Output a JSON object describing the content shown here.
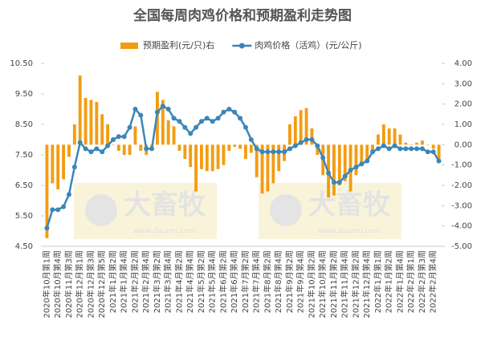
{
  "chart_data": {
    "type": "combo",
    "title": "全国每周肉鸡价格和预期盈利走势图",
    "watermark": "大畜牧",
    "watermark_url": "www.dxumu.com",
    "categories": [
      "2020年10月第1周",
      null,
      "2020年10月第4周",
      null,
      "2020年11月第3周",
      null,
      "2020年12月第1周",
      null,
      "2020年12月第3周",
      null,
      "2020年12月第5周",
      null,
      "2021年1月第2周",
      null,
      "2021年1月第4周",
      null,
      "2021年2月第2周",
      null,
      "2021年2月第4周",
      null,
      "2021年3月第2周",
      null,
      "2021年3月第4周",
      null,
      "2021年4月第2周",
      null,
      "2021年4月第4周",
      null,
      "2021年5月第2周",
      null,
      "2021年5月第4周",
      null,
      "2021年6月第2周",
      null,
      "2021年6月第4周",
      null,
      "2021年7月第2周",
      null,
      "2021年7月第4周",
      null,
      "2021年8月第2周",
      null,
      "2021年8月第4周",
      null,
      "2021年9月第2周",
      null,
      "2021年9月第4周",
      null,
      "2021年10月第2周",
      null,
      "2021年10月第4周",
      null,
      "2021年11月第2周",
      null,
      "2021年11月第4周",
      null,
      "2021年12月第2周",
      null,
      "2021年12月第4周",
      null,
      "2022年1月第1周",
      null,
      "2022年1月第2周",
      null,
      "2022年1月第4周",
      null,
      "2022年2月第1周",
      null,
      "2022年2月第3周",
      null,
      "2022年2月第4周",
      null
    ],
    "series": [
      {
        "name": "预期盈利(元/只)右",
        "type": "bar",
        "axis": "y2",
        "color": "#f39c12",
        "values": [
          -4.6,
          -1.9,
          -2.2,
          -1.7,
          -0.6,
          1.0,
          3.4,
          2.3,
          2.2,
          2.1,
          1.5,
          1.0,
          0.0,
          -0.3,
          -0.5,
          -0.5,
          0.9,
          -0.3,
          -0.5,
          -0.2,
          2.6,
          2.2,
          1.2,
          0.9,
          -0.3,
          -0.7,
          -1.1,
          -2.3,
          -1.2,
          -1.3,
          -1.3,
          -1.2,
          -1.0,
          -0.3,
          -0.1,
          -0.2,
          -0.7,
          -0.4,
          -1.6,
          -2.4,
          -2.3,
          -1.9,
          -1.3,
          -0.8,
          1.0,
          1.4,
          1.7,
          1.8,
          0.8,
          -0.5,
          -1.5,
          -2.6,
          -2.5,
          -2.0,
          -1.8,
          -2.3,
          -1.5,
          -1.0,
          -0.7,
          -0.3,
          0.5,
          1.0,
          0.8,
          0.8,
          0.5,
          0.1,
          0.0,
          0.1,
          0.2,
          0.0,
          -0.2,
          -0.9
        ]
      },
      {
        "name": "肉鸡价格（活鸡）(元/公斤)",
        "type": "line",
        "axis": "y",
        "color": "#3b86b8",
        "values": [
          5.1,
          5.7,
          5.7,
          5.8,
          6.2,
          7.1,
          7.9,
          7.7,
          7.6,
          7.7,
          7.6,
          7.8,
          8.0,
          8.1,
          8.1,
          8.4,
          9.0,
          8.8,
          7.7,
          7.7,
          8.9,
          9.1,
          9.0,
          8.7,
          8.6,
          8.4,
          8.2,
          8.4,
          8.6,
          8.7,
          8.6,
          8.7,
          8.9,
          9.0,
          8.9,
          8.7,
          8.4,
          8.0,
          7.7,
          7.6,
          7.6,
          7.6,
          7.6,
          7.6,
          7.7,
          7.8,
          7.9,
          8.0,
          8.0,
          7.8,
          7.4,
          6.9,
          6.6,
          6.6,
          6.8,
          7.0,
          7.1,
          7.2,
          7.3,
          7.6,
          7.7,
          7.8,
          7.7,
          7.8,
          7.7,
          7.7,
          7.7,
          7.7,
          7.7,
          7.6,
          7.6,
          7.3
        ]
      }
    ],
    "ylim": [
      4.5,
      10.5
    ],
    "yticks": [
      {
        "value": 4.5,
        "label": "4.50"
      },
      {
        "value": 5.5,
        "label": "5.50"
      },
      {
        "value": 6.5,
        "label": "6.50"
      },
      {
        "value": 7.5,
        "label": "7.50"
      },
      {
        "value": 8.5,
        "label": "8.50"
      },
      {
        "value": 9.5,
        "label": "9.50"
      },
      {
        "value": 10.5,
        "label": "10.50"
      }
    ],
    "y2lim": [
      -5,
      4
    ],
    "y2ticks": [
      {
        "value": -5,
        "label": "-5.00"
      },
      {
        "value": -4,
        "label": "-4.00"
      },
      {
        "value": -3,
        "label": "-3.00"
      },
      {
        "value": -2,
        "label": "-2.00"
      },
      {
        "value": -1,
        "label": "-1.00"
      },
      {
        "value": 0,
        "label": "0.00"
      },
      {
        "value": 1,
        "label": "1.00"
      },
      {
        "value": 2,
        "label": "2.00"
      },
      {
        "value": 3,
        "label": "3.00"
      },
      {
        "value": 4,
        "label": "4.00"
      }
    ],
    "grid": false
  }
}
